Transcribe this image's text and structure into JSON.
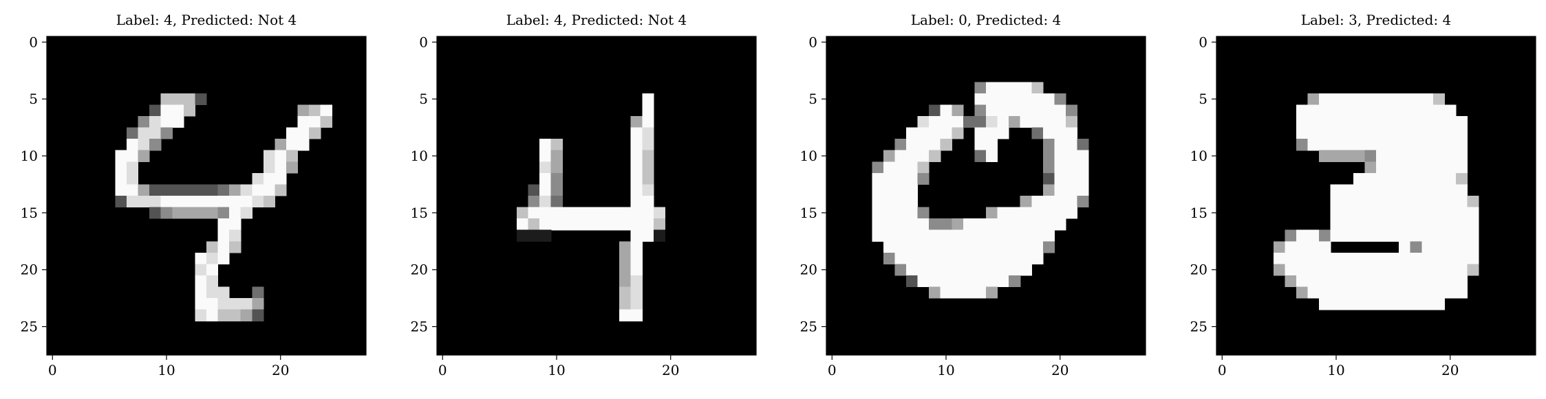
{
  "chart_data": [
    {
      "type": "heatmap",
      "title": "Label: 4, Predicted: Not 4",
      "colormap": "gray",
      "xlim": [
        -0.5,
        27.5
      ],
      "ylim": [
        27.5,
        -0.5
      ],
      "xticks": [
        0,
        10,
        20
      ],
      "yticks": [
        0,
        5,
        10,
        15,
        20,
        25
      ],
      "rows": [
        "0000000000000000000000000000",
        "0000000000000000000000000000",
        "0000000000000000000000000000",
        "0000000000000000000000000000",
        "0000000000000000000000000000",
        "0000000000777300000000000000",
        "0000000003997000000000679000",
        "0000000058990000000000997000",
        "0000000488500000000009970000",
        "0000000985000000000069900000",
        "0000009960000000000897000000",
        "0000009800000000000896000000",
        "0000009800000000008990000000",
        "0000009963333334689970000000",
        "0000003888999999998700000000",
        "0000000003566665980000000000",
        "0000000000000009900000000000",
        "0000000000000009800000000000",
        "0000000000000079700000000000",
        "0000000000000989000000000000",
        "0000000000000890000000000000",
        "0000000000000980000000000000",
        "0000000000000988004000000000",
        "0000000000000998886000000000",
        "0000000000000897763000000000",
        "0000000000000000000000000000",
        "0000000000000000000000000000",
        "0000000000000000000000000000"
      ]
    },
    {
      "type": "heatmap",
      "title": "Label: 4, Predicted: Not 4",
      "colormap": "gray",
      "xlim": [
        -0.5,
        27.5
      ],
      "ylim": [
        27.5,
        -0.5
      ],
      "xticks": [
        0,
        10,
        20
      ],
      "yticks": [
        0,
        5,
        10,
        15,
        20,
        25
      ],
      "rows": [
        "0000000000000000000000000000",
        "0000000000000000000000000000",
        "0000000000000000000000000000",
        "0000000000000000000000000000",
        "0000000000000000000000000000",
        "0000000000000000009000000000",
        "0000000000000000009000000000",
        "0000000000000000069000000000",
        "0000000000000000098000000000",
        "0000000009700000098000000000",
        "0000000009600000097000000000",
        "0000000008600000097000000000",
        "0000000009500000097000000000",
        "0000000039500000098000000000",
        "0000000058400000099000000000",
        "0000000799999999999800000000",
        "0000000979999999999700000000",
        "0000000111000000099100000000",
        "0000000000000000690000000000",
        "0000000000000000690000000000",
        "0000000000000000690000000000",
        "0000000000000000680000000000",
        "0000000000000000780000000000",
        "0000000000000000780000000000",
        "0000000000000000990000000000",
        "0000000000000000000000000000",
        "0000000000000000000000000000",
        "0000000000000000000000000000"
      ]
    },
    {
      "type": "heatmap",
      "title": "Label: 0, Predicted: 4",
      "colormap": "gray",
      "xlim": [
        -0.5,
        27.5
      ],
      "ylim": [
        27.5,
        -0.5
      ],
      "xticks": [
        0,
        10,
        20
      ],
      "yticks": [
        0,
        5,
        10,
        15,
        20,
        25
      ],
      "rows": [
        "0000000000000000000000000000",
        "0000000000000000000000000000",
        "0000000000000000000000000000",
        "0000000000000000000000000000",
        "0000000000000599997000000000",
        "0000000000000999999950000000",
        "0000000003960599999995000000",
        "0000000089994489699997000000",
        "0000000999970999004999000000",
        "0000005999700990000599400000",
        "0000069997000490000599900000",
        "0000599970000000000599900000",
        "0000999950000000000399900000",
        "0000999900000000000699900000",
        "0000999900000000069999500000",
        "0000999950000069999999000000",
        "0000999995569999999990000000",
        "0000999999999999999900000000",
        "0000099999999999999500000000",
        "0000059999999999999000000000",
        "0000005999999999990000000000",
        "0000000399999999500000000000",
        "0000000006999960000000000000",
        "0000000000000000000000000000",
        "0000000000000000000000000000",
        "0000000000000000000000000000",
        "0000000000000000000000000000",
        "0000000000000000000000000000"
      ]
    },
    {
      "type": "heatmap",
      "title": "Label: 3, Predicted: 4",
      "colormap": "gray",
      "xlim": [
        -0.5,
        27.5
      ],
      "ylim": [
        27.5,
        -0.5
      ],
      "xticks": [
        0,
        10,
        20
      ],
      "yticks": [
        0,
        5,
        10,
        15,
        20,
        25
      ],
      "rows": [
        "0000000000000000000000000000",
        "0000000000000000000000000000",
        "0000000000000000000000000000",
        "0000000000000000000000000000",
        "0000000000000000000000000000",
        "0000000069999999999700000000",
        "0000000999999999999990000000",
        "0000000999999999999999000000",
        "0000000999999999999999000000",
        "0000000599999999999999000000",
        "0000000006666599999999000000",
        "0000000000000699999999000000",
        "0000000000009999999997000000",
        "0000000000999999999999000000",
        "0000000000999999999999700000",
        "0000000000999999999999900000",
        "0000000000999999999999900000",
        "0000005995999999999999900000",
        "0000069999000000959999900000",
        "0000099999999999999999900000",
        "0000069999999999999999700000",
        "0000006999999999999999000000",
        "0000000699999999999999000000",
        "0000000009999999999900000000",
        "0000000000000000000000000000",
        "0000000000000000000000000000",
        "0000000000000000000000000000",
        "0000000000000000000000000000"
      ]
    }
  ]
}
